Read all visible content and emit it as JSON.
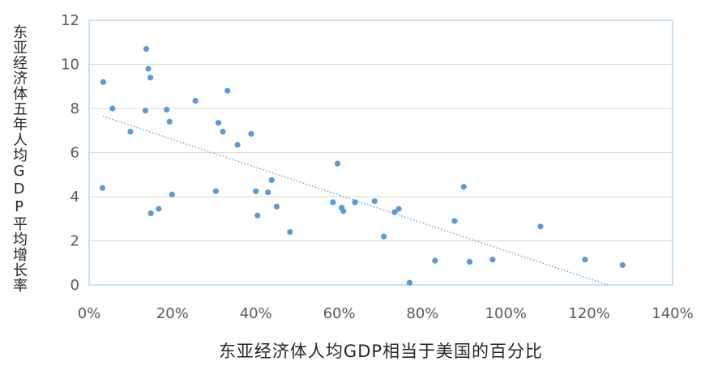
{
  "chart_data": {
    "type": "scatter",
    "title": "",
    "xlabel": "东亚经济体人均GDP相当于美国的百分比",
    "ylabel": "东亚经济体五年人均GDP平均增长率",
    "xlim": [
      0,
      140
    ],
    "ylim": [
      0,
      12
    ],
    "xticks": [
      "0%",
      "20%",
      "40%",
      "60%",
      "80%",
      "100%",
      "120%",
      "140%"
    ],
    "yticks": [
      "0",
      "2",
      "4",
      "6",
      "8",
      "10",
      "12"
    ],
    "grid": "horizontal",
    "point_color": "#5b9bd5",
    "trendline": {
      "type": "linear",
      "style": "dotted",
      "x": [
        3.3,
        124.5
      ],
      "y": [
        7.65,
        0
      ]
    },
    "points": [
      {
        "x": 3.4,
        "y": 9.2
      },
      {
        "x": 3.2,
        "y": 4.4
      },
      {
        "x": 5.6,
        "y": 8.0
      },
      {
        "x": 9.9,
        "y": 6.95
      },
      {
        "x": 13.5,
        "y": 7.9
      },
      {
        "x": 13.7,
        "y": 10.7
      },
      {
        "x": 14.2,
        "y": 9.8
      },
      {
        "x": 14.7,
        "y": 9.4
      },
      {
        "x": 14.8,
        "y": 3.25
      },
      {
        "x": 16.7,
        "y": 3.45
      },
      {
        "x": 18.6,
        "y": 7.95
      },
      {
        "x": 19.3,
        "y": 7.4
      },
      {
        "x": 19.9,
        "y": 4.1
      },
      {
        "x": 25.5,
        "y": 8.35
      },
      {
        "x": 30.4,
        "y": 4.25
      },
      {
        "x": 31.0,
        "y": 7.35
      },
      {
        "x": 32.1,
        "y": 6.95
      },
      {
        "x": 33.2,
        "y": 8.8
      },
      {
        "x": 35.6,
        "y": 6.35
      },
      {
        "x": 38.9,
        "y": 6.85
      },
      {
        "x": 40.0,
        "y": 4.25
      },
      {
        "x": 40.4,
        "y": 3.15
      },
      {
        "x": 42.9,
        "y": 4.2
      },
      {
        "x": 43.8,
        "y": 4.75
      },
      {
        "x": 45.0,
        "y": 3.55
      },
      {
        "x": 48.2,
        "y": 2.4
      },
      {
        "x": 58.5,
        "y": 3.75
      },
      {
        "x": 59.6,
        "y": 5.5
      },
      {
        "x": 60.6,
        "y": 3.5
      },
      {
        "x": 61.0,
        "y": 3.35
      },
      {
        "x": 63.8,
        "y": 3.75
      },
      {
        "x": 68.5,
        "y": 3.8
      },
      {
        "x": 70.7,
        "y": 2.2
      },
      {
        "x": 73.3,
        "y": 3.3
      },
      {
        "x": 74.3,
        "y": 3.45
      },
      {
        "x": 76.9,
        "y": 0.1
      },
      {
        "x": 83.0,
        "y": 1.1
      },
      {
        "x": 87.7,
        "y": 2.9
      },
      {
        "x": 89.9,
        "y": 4.45
      },
      {
        "x": 91.3,
        "y": 1.05
      },
      {
        "x": 96.8,
        "y": 1.15
      },
      {
        "x": 108.3,
        "y": 2.65
      },
      {
        "x": 119.0,
        "y": 1.15
      },
      {
        "x": 128.0,
        "y": 0.9
      }
    ]
  }
}
